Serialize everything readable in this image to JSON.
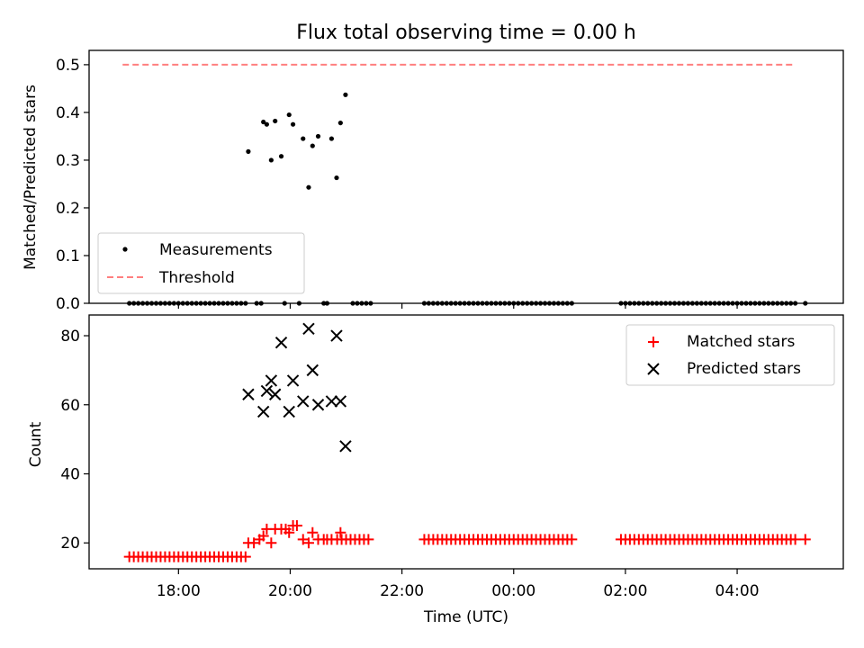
{
  "title": "Flux total observing time = 0.00 h",
  "chart_data": [
    {
      "type": "scatter",
      "title": "Flux total observing time = 0.00 h",
      "ylabel": "Matched/Predicted stars",
      "xlabel": "",
      "x_unit": "hours since 17:00 UTC",
      "xlim": [
        -0.6,
        12.9
      ],
      "ylim": [
        0.0,
        0.53
      ],
      "yticks": [
        0.0,
        0.1,
        0.2,
        0.3,
        0.4,
        0.5
      ],
      "ytick_labels": [
        "0.0",
        "0.1",
        "0.2",
        "0.3",
        "0.4",
        "0.5"
      ],
      "grid": false,
      "legend": {
        "placement": "lower-left",
        "entries": [
          "Measurements",
          "Threshold"
        ]
      },
      "series": [
        {
          "name": "Measurements",
          "marker": "dot",
          "color": "#000000",
          "points": [
            [
              2.25,
              0.318
            ],
            [
              2.52,
              0.38
            ],
            [
              2.58,
              0.375
            ],
            [
              2.66,
              0.3
            ],
            [
              2.73,
              0.382
            ],
            [
              2.84,
              0.308
            ],
            [
              2.98,
              0.395
            ],
            [
              3.05,
              0.375
            ],
            [
              3.23,
              0.345
            ],
            [
              3.33,
              0.243
            ],
            [
              3.4,
              0.33
            ],
            [
              3.5,
              0.35
            ],
            [
              3.74,
              0.345
            ],
            [
              3.83,
              0.263
            ],
            [
              3.9,
              0.378
            ],
            [
              3.99,
              0.437
            ]
          ],
          "zero_points_x": [
            0.12,
            0.2,
            0.28,
            0.36,
            0.44,
            0.52,
            0.6,
            0.68,
            0.76,
            0.84,
            0.92,
            1.0,
            1.08,
            1.16,
            1.24,
            1.32,
            1.4,
            1.48,
            1.56,
            1.64,
            1.72,
            1.8,
            1.88,
            1.96,
            2.04,
            2.12,
            2.2,
            2.4,
            2.48,
            2.9,
            3.16,
            3.6,
            3.66,
            4.12,
            4.2,
            4.28,
            4.36,
            4.44,
            5.4,
            5.48,
            5.56,
            5.64,
            5.72,
            5.8,
            5.88,
            5.96,
            6.04,
            6.12,
            6.2,
            6.28,
            6.36,
            6.44,
            6.52,
            6.6,
            6.68,
            6.76,
            6.84,
            6.92,
            7.0,
            7.08,
            7.16,
            7.24,
            7.32,
            7.4,
            7.48,
            7.56,
            7.64,
            7.72,
            7.8,
            7.88,
            7.96,
            8.04,
            8.92,
            9.0,
            9.08,
            9.16,
            9.24,
            9.32,
            9.4,
            9.48,
            9.56,
            9.64,
            9.72,
            9.8,
            9.88,
            9.96,
            10.04,
            10.12,
            10.2,
            10.28,
            10.36,
            10.44,
            10.52,
            10.6,
            10.68,
            10.76,
            10.84,
            10.92,
            11.0,
            11.08,
            11.16,
            11.24,
            11.32,
            11.4,
            11.48,
            11.56,
            11.64,
            11.72,
            11.8,
            11.88,
            11.96,
            12.04,
            12.22
          ]
        },
        {
          "name": "Threshold",
          "style": "dashed",
          "color": "#ff7f7f",
          "x": [
            0.0,
            12.05
          ],
          "y": [
            0.5,
            0.5
          ]
        }
      ]
    },
    {
      "type": "scatter",
      "title": "",
      "ylabel": "Count",
      "xlabel": "Time (UTC)",
      "x_unit": "hours since 17:00 UTC",
      "xlim": [
        -0.6,
        12.9
      ],
      "ylim": [
        12.5,
        86.0
      ],
      "yticks": [
        20,
        40,
        60,
        80
      ],
      "ytick_labels": [
        "20",
        "40",
        "60",
        "80"
      ],
      "xticks": [
        1,
        3,
        5,
        7,
        9,
        11
      ],
      "xtick_labels": [
        "18:00",
        "20:00",
        "22:00",
        "00:00",
        "02:00",
        "04:00"
      ],
      "grid": false,
      "legend": {
        "placement": "upper-right",
        "entries": [
          "Matched stars",
          "Predicted stars"
        ]
      },
      "series": [
        {
          "name": "Matched stars",
          "marker": "plus",
          "color": "#ff0000",
          "segments": [
            {
              "x_start": 0.12,
              "x_end": 2.2,
              "step": 0.08,
              "y": 16
            },
            {
              "x_start": 3.84,
              "x_end": 4.44,
              "step": 0.08,
              "y": 21
            },
            {
              "x_start": 5.4,
              "x_end": 8.04,
              "step": 0.08,
              "y": 21
            },
            {
              "x_start": 8.92,
              "x_end": 12.04,
              "step": 0.08,
              "y": 21
            }
          ],
          "points": [
            [
              2.25,
              20
            ],
            [
              2.35,
              20
            ],
            [
              2.45,
              21
            ],
            [
              2.52,
              22
            ],
            [
              2.58,
              24
            ],
            [
              2.66,
              20
            ],
            [
              2.73,
              24
            ],
            [
              2.84,
              24
            ],
            [
              2.92,
              24
            ],
            [
              2.98,
              23
            ],
            [
              3.05,
              25
            ],
            [
              3.12,
              25
            ],
            [
              3.23,
              21
            ],
            [
              3.33,
              20
            ],
            [
              3.4,
              23
            ],
            [
              3.5,
              21
            ],
            [
              3.6,
              21
            ],
            [
              3.66,
              21
            ],
            [
              3.74,
              21
            ],
            [
              3.9,
              23
            ],
            [
              12.22,
              21
            ]
          ]
        },
        {
          "name": "Predicted stars",
          "marker": "x",
          "color": "#000000",
          "points": [
            [
              2.25,
              63
            ],
            [
              2.52,
              58
            ],
            [
              2.58,
              64
            ],
            [
              2.66,
              67
            ],
            [
              2.73,
              63
            ],
            [
              2.84,
              78
            ],
            [
              2.98,
              58
            ],
            [
              3.05,
              67
            ],
            [
              3.23,
              61
            ],
            [
              3.33,
              82
            ],
            [
              3.4,
              70
            ],
            [
              3.5,
              60
            ],
            [
              3.74,
              61
            ],
            [
              3.83,
              80
            ],
            [
              3.9,
              61
            ],
            [
              3.99,
              48
            ]
          ]
        }
      ]
    }
  ]
}
